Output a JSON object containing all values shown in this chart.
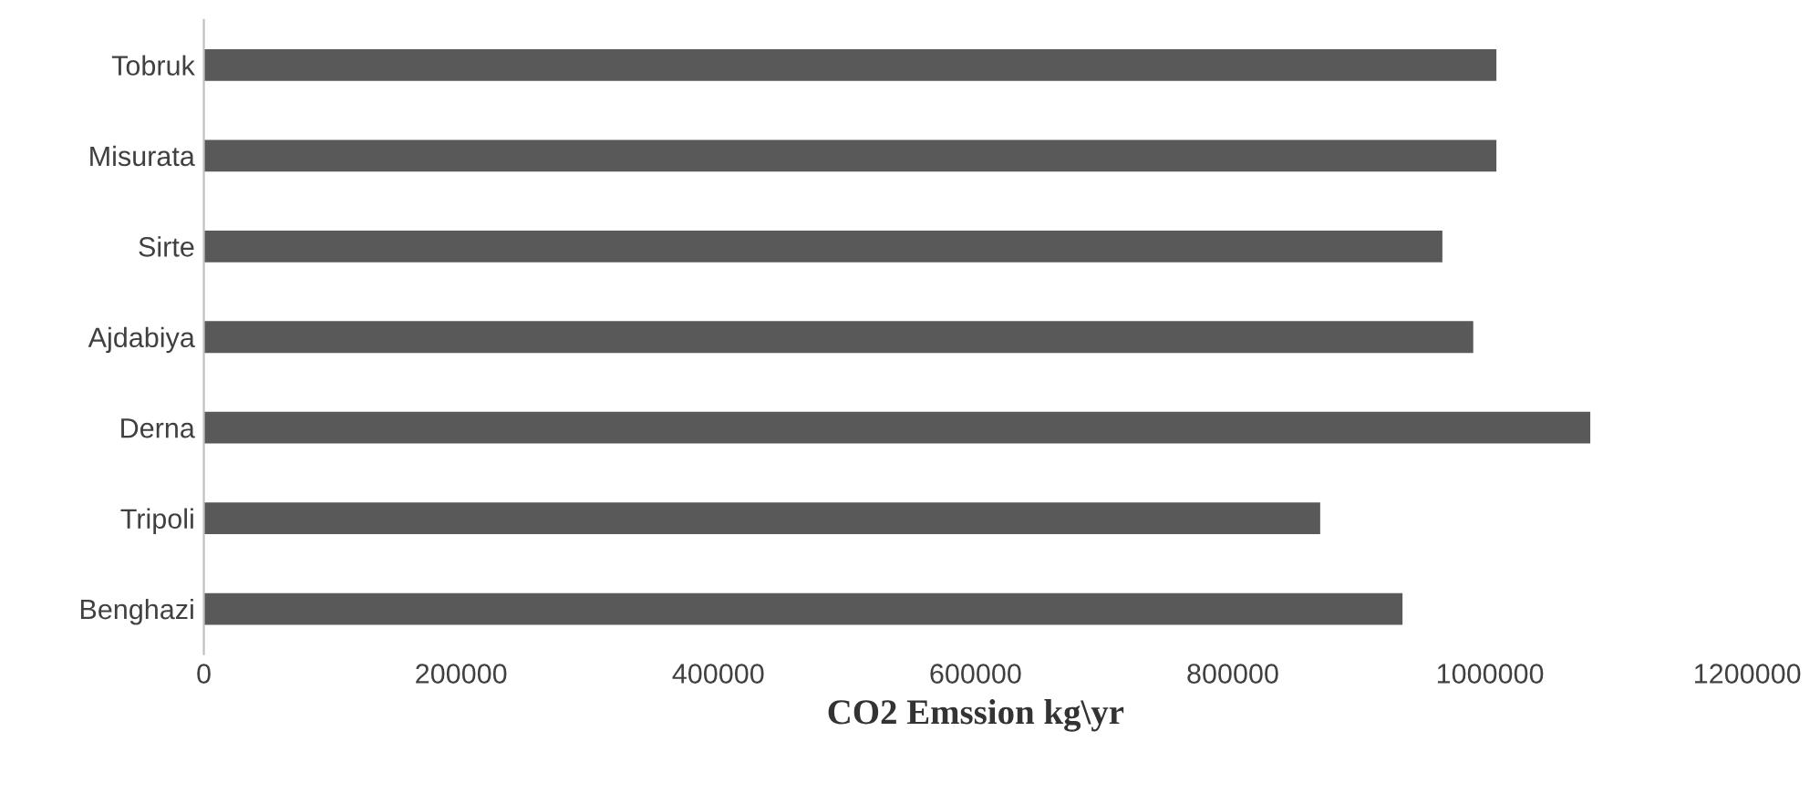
{
  "chart_data": {
    "type": "bar",
    "orientation": "horizontal",
    "xlabel": "CO2 Emssion kg\\yr",
    "categories": [
      "Tobruk",
      "Misurata",
      "Sirte",
      "Ajdabiya",
      "Derna",
      "Tripoli",
      "Benghazi"
    ],
    "values": [
      1005000,
      1005000,
      963000,
      987000,
      1078000,
      868000,
      932000
    ],
    "color": "#595959",
    "xlim": [
      0,
      1200000
    ],
    "xticks": [
      0,
      200000,
      400000,
      600000,
      800000,
      1000000,
      1200000
    ],
    "grid": false,
    "legend": false
  }
}
